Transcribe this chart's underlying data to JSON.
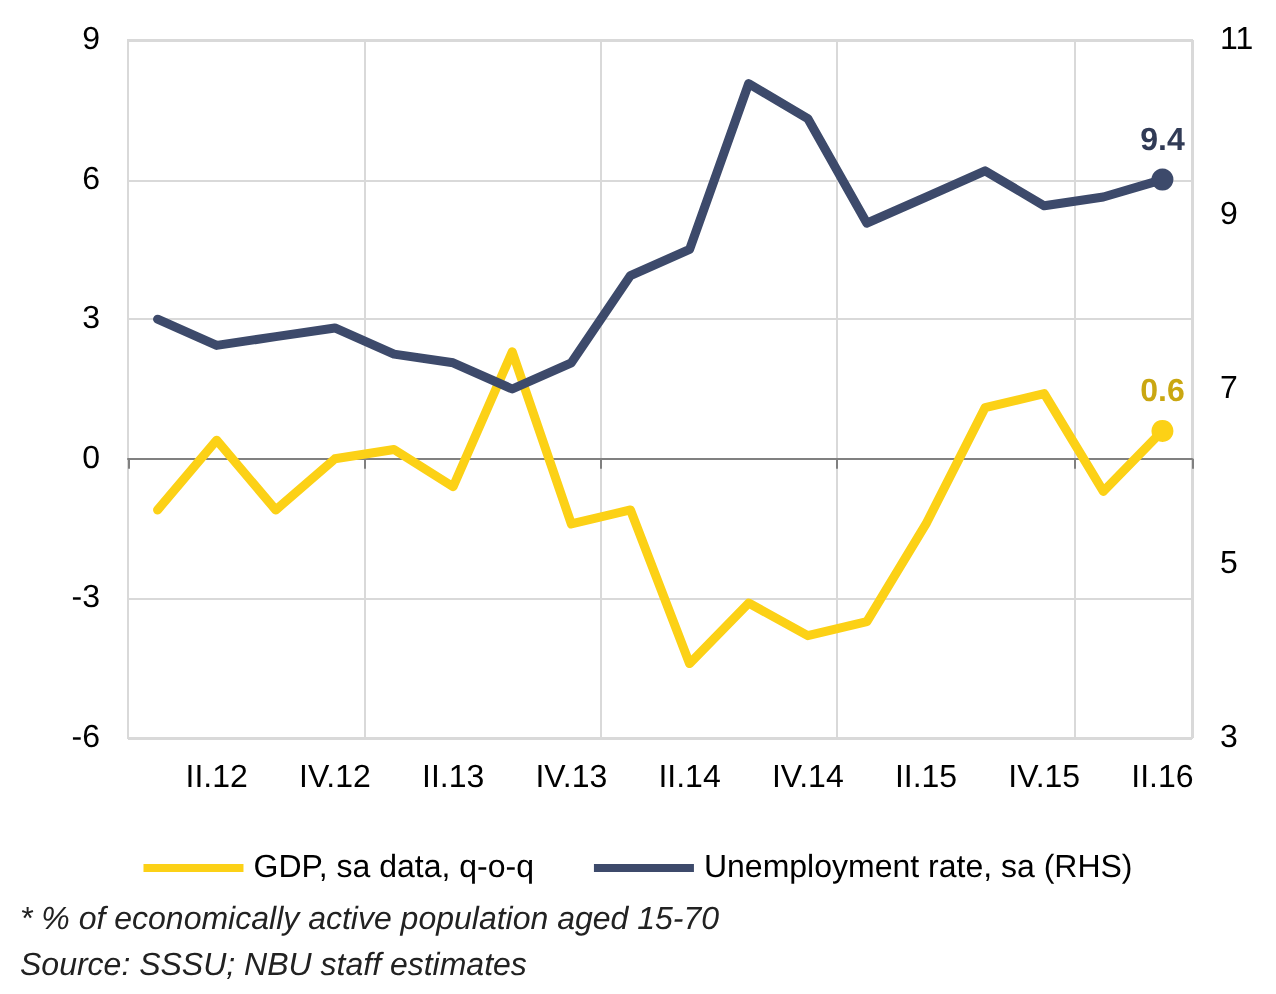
{
  "chart_data": {
    "type": "line",
    "categories": [
      null,
      "II.12",
      null,
      "IV.12",
      null,
      "II.13",
      null,
      "IV.13",
      null,
      "II.14",
      null,
      "IV.14",
      null,
      "II.15",
      null,
      "IV.15",
      null,
      "II.16"
    ],
    "series": [
      {
        "name": "GDP, sa data, q-o-q",
        "color": "#fcd116",
        "values": [
          -1.1,
          0.4,
          -1.1,
          0.0,
          0.2,
          -0.6,
          2.3,
          -1.4,
          -1.1,
          -4.4,
          -3.1,
          -3.8,
          -3.5,
          -1.4,
          1.1,
          1.4,
          -0.7,
          0.6
        ],
        "value_labels": [
          null,
          null,
          null,
          null,
          null,
          null,
          null,
          null,
          null,
          null,
          null,
          null,
          null,
          null,
          null,
          null,
          null,
          "0.6"
        ]
      },
      {
        "name": "Unemployment rate, sa (RHS)",
        "color": "#3d4a6b",
        "axis": "y2",
        "values": [
          7.8,
          7.5,
          7.6,
          7.7,
          7.4,
          7.3,
          7.0,
          7.3,
          8.3,
          8.6,
          10.5,
          10.1,
          8.9,
          9.2,
          9.5,
          9.1,
          9.2,
          9.4
        ],
        "value_labels": [
          null,
          null,
          null,
          null,
          null,
          null,
          null,
          null,
          null,
          null,
          null,
          null,
          null,
          null,
          null,
          null,
          null,
          "9.4"
        ]
      }
    ],
    "ylim": [
      -6,
      9
    ],
    "yticks": [
      -6,
      -3,
      0,
      3,
      6,
      9
    ],
    "y2lim": [
      3,
      11
    ],
    "y2ticks": [
      3,
      5,
      7,
      9,
      11
    ],
    "grid": true,
    "legend": "bottom",
    "line_style": "solid",
    "annotations": [
      "* % of economically active population aged 15-70",
      "Source: SSSU; NBU staff estimates"
    ]
  }
}
